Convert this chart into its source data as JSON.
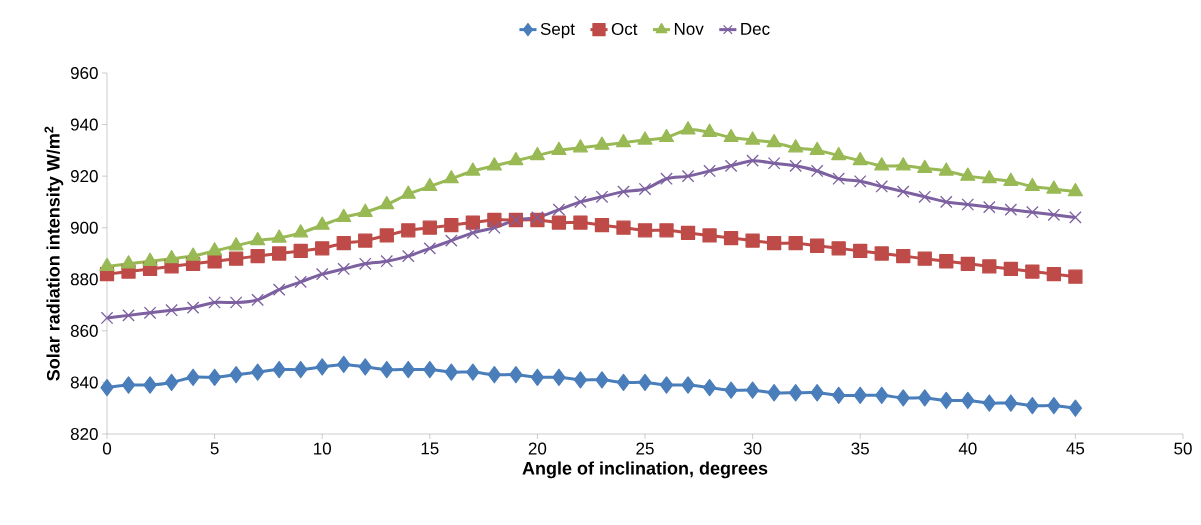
{
  "chart_data": {
    "type": "line",
    "xlabel": "Angle of inclination,  degrees",
    "ylabel": "Solar radiation intensity W/m$^{2}$",
    "x": [
      0,
      1,
      2,
      3,
      4,
      5,
      6,
      7,
      8,
      9,
      10,
      11,
      12,
      13,
      14,
      15,
      16,
      17,
      18,
      19,
      20,
      21,
      22,
      23,
      24,
      25,
      26,
      27,
      28,
      29,
      30,
      31,
      32,
      33,
      34,
      35,
      36,
      37,
      38,
      39,
      40,
      41,
      42,
      43,
      44,
      45
    ],
    "series": [
      {
        "name": "Sept",
        "color": "#4a7ebb",
        "marker": "diamond",
        "values": [
          838,
          839,
          839,
          840,
          842,
          842,
          843,
          844,
          845,
          845,
          846,
          847,
          846,
          845,
          845,
          845,
          844,
          844,
          843,
          843,
          842,
          842,
          841,
          841,
          840,
          840,
          839,
          839,
          838,
          837,
          837,
          836,
          836,
          836,
          835,
          835,
          835,
          834,
          834,
          833,
          833,
          832,
          832,
          831,
          831,
          830
        ]
      },
      {
        "name": "Oct",
        "color": "#be4b48",
        "marker": "square",
        "values": [
          882,
          883,
          884,
          885,
          886,
          887,
          888,
          889,
          890,
          891,
          892,
          894,
          895,
          897,
          899,
          900,
          901,
          902,
          903,
          903,
          903,
          902,
          902,
          901,
          900,
          899,
          899,
          898,
          897,
          896,
          895,
          894,
          894,
          893,
          892,
          891,
          890,
          889,
          888,
          887,
          886,
          885,
          884,
          883,
          882,
          881
        ]
      },
      {
        "name": "Nov",
        "color": "#98b954",
        "marker": "triangle",
        "values": [
          885,
          886,
          887,
          888,
          889,
          891,
          893,
          895,
          896,
          898,
          901,
          904,
          906,
          909,
          913,
          916,
          919,
          922,
          924,
          926,
          928,
          930,
          931,
          932,
          933,
          934,
          935,
          938,
          937,
          935,
          934,
          933,
          931,
          930,
          928,
          926,
          924,
          924,
          923,
          922,
          920,
          919,
          918,
          916,
          915,
          914
        ]
      },
      {
        "name": "Dec",
        "color": "#7d60a0",
        "marker": "cross",
        "values": [
          865,
          866,
          867,
          868,
          869,
          871,
          871,
          872,
          876,
          879,
          882,
          884,
          886,
          887,
          889,
          892,
          895,
          898,
          900,
          903,
          904,
          907,
          910,
          912,
          914,
          915,
          919,
          920,
          922,
          924,
          926,
          925,
          924,
          922,
          919,
          918,
          916,
          914,
          912,
          910,
          909,
          908,
          907,
          906,
          905,
          904
        ]
      }
    ],
    "xlim": [
      0,
      50
    ],
    "xticks": [
      0,
      5,
      10,
      15,
      20,
      25,
      30,
      35,
      40,
      45,
      50
    ],
    "ylim": [
      820,
      960
    ],
    "yticks": [
      820,
      840,
      860,
      880,
      900,
      920,
      940,
      960
    ],
    "grid": false,
    "legend": "top",
    "line_style": "solid"
  }
}
